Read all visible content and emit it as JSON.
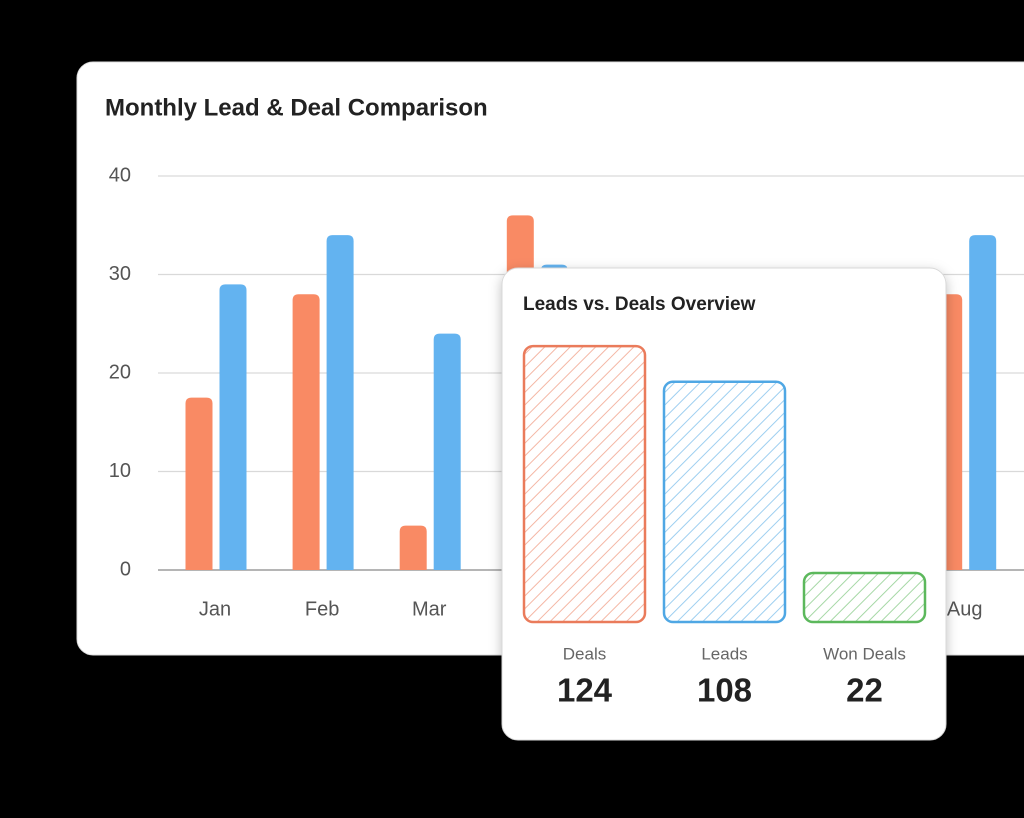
{
  "chart_data": [
    {
      "type": "bar",
      "title": "Monthly Lead & Deal Comparison",
      "categories": [
        "Jan",
        "Feb",
        "Mar",
        null,
        null,
        null,
        null,
        "Aug"
      ],
      "series": [
        {
          "color": "#f98a64",
          "values": [
            17.5,
            28,
            4.5,
            36,
            null,
            null,
            null,
            28
          ]
        },
        {
          "color": "#63b3f0",
          "values": [
            29,
            34,
            24,
            31,
            null,
            null,
            null,
            34
          ]
        }
      ],
      "ylim": [
        0,
        40
      ],
      "yticks": [
        0,
        10,
        20,
        30,
        40
      ],
      "grid": true
    },
    {
      "type": "bar",
      "title": "Leads vs. Deals Overview",
      "categories": [
        "Deals",
        "Leads",
        "Won Deals"
      ],
      "values": [
        124,
        108,
        22
      ],
      "colors": [
        "#ea7b5b",
        "#4fa7e4",
        "#5cb85c"
      ]
    }
  ]
}
